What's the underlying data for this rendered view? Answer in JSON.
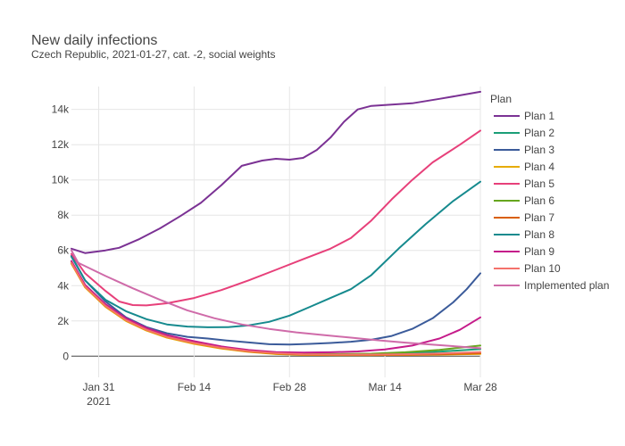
{
  "chart_data": {
    "type": "line",
    "title": "New daily infections",
    "subtitle": "Czech Republic, 2021-01-27, cat. -2, social weights",
    "xlabel": "",
    "ylabel": "",
    "x_tick_labels": [
      "Jan 31\n2021",
      "Feb 14",
      "Feb 28",
      "Mar 14",
      "Mar 28"
    ],
    "x_tick_dates": [
      "2021-01-31",
      "2021-02-14",
      "2021-02-28",
      "2021-03-14",
      "2021-03-28"
    ],
    "x_range": [
      "2021-01-27",
      "2021-03-28"
    ],
    "y_tick_labels": [
      "0",
      "2k",
      "4k",
      "6k",
      "8k",
      "10k",
      "12k",
      "14k"
    ],
    "y_tick_values": [
      0,
      2000,
      4000,
      6000,
      8000,
      10000,
      12000,
      14000
    ],
    "ylim": [
      -1200,
      15300
    ],
    "grid": true,
    "legend_title": "Plan",
    "legend_position": "right",
    "series": [
      {
        "name": "Plan 1",
        "color": "#7b3294",
        "x": [
          "2021-01-27",
          "2021-01-29",
          "2021-02-01",
          "2021-02-03",
          "2021-02-06",
          "2021-02-09",
          "2021-02-12",
          "2021-02-15",
          "2021-02-18",
          "2021-02-21",
          "2021-02-24",
          "2021-02-26",
          "2021-02-28",
          "2021-03-02",
          "2021-03-04",
          "2021-03-06",
          "2021-03-08",
          "2021-03-10",
          "2021-03-12",
          "2021-03-14",
          "2021-03-18",
          "2021-03-22",
          "2021-03-25",
          "2021-03-28"
        ],
        "y": [
          6100,
          5850,
          6000,
          6150,
          6650,
          7250,
          7950,
          8700,
          9700,
          10800,
          11100,
          11200,
          11150,
          11250,
          11700,
          12400,
          13300,
          14000,
          14200,
          14250,
          14350,
          14600,
          14800,
          15000
        ]
      },
      {
        "name": "Plan 2",
        "color": "#1b9e77",
        "x": [
          "2021-01-27",
          "2021-01-29",
          "2021-02-01",
          "2021-02-04",
          "2021-02-07",
          "2021-02-10",
          "2021-02-14",
          "2021-02-18",
          "2021-02-22",
          "2021-02-26",
          "2021-03-02",
          "2021-03-07",
          "2021-03-12",
          "2021-03-17",
          "2021-03-22",
          "2021-03-28"
        ],
        "y": [
          5300,
          4000,
          2900,
          2100,
          1550,
          1150,
          800,
          520,
          300,
          180,
          120,
          100,
          120,
          170,
          260,
          400
        ]
      },
      {
        "name": "Plan 3",
        "color": "#3b5b9a",
        "x": [
          "2021-01-27",
          "2021-01-29",
          "2021-02-01",
          "2021-02-04",
          "2021-02-07",
          "2021-02-10",
          "2021-02-13",
          "2021-02-16",
          "2021-02-19",
          "2021-02-22",
          "2021-02-25",
          "2021-02-28",
          "2021-03-03",
          "2021-03-06",
          "2021-03-09",
          "2021-03-12",
          "2021-03-15",
          "2021-03-18",
          "2021-03-21",
          "2021-03-24",
          "2021-03-26",
          "2021-03-28"
        ],
        "y": [
          5700,
          4300,
          3100,
          2200,
          1650,
          1300,
          1100,
          1000,
          880,
          780,
          680,
          660,
          700,
          750,
          820,
          930,
          1150,
          1550,
          2150,
          3050,
          3800,
          4700
        ]
      },
      {
        "name": "Plan 4",
        "color": "#e6ab02",
        "x": [
          "2021-01-27",
          "2021-01-29",
          "2021-02-01",
          "2021-02-04",
          "2021-02-07",
          "2021-02-10",
          "2021-02-14",
          "2021-02-18",
          "2021-02-22",
          "2021-02-26",
          "2021-03-02",
          "2021-03-07",
          "2021-03-12",
          "2021-03-17",
          "2021-03-22",
          "2021-03-28"
        ],
        "y": [
          5250,
          3900,
          2800,
          2000,
          1450,
          1050,
          700,
          430,
          240,
          120,
          70,
          60,
          60,
          70,
          90,
          130
        ]
      },
      {
        "name": "Plan 5",
        "color": "#e7407a",
        "x": [
          "2021-01-27",
          "2021-01-29",
          "2021-02-01",
          "2021-02-03",
          "2021-02-05",
          "2021-02-07",
          "2021-02-10",
          "2021-02-14",
          "2021-02-18",
          "2021-02-22",
          "2021-02-26",
          "2021-03-02",
          "2021-03-06",
          "2021-03-09",
          "2021-03-12",
          "2021-03-15",
          "2021-03-18",
          "2021-03-21",
          "2021-03-25",
          "2021-03-28"
        ],
        "y": [
          5800,
          4700,
          3700,
          3100,
          2900,
          2880,
          3000,
          3300,
          3750,
          4300,
          4900,
          5500,
          6100,
          6700,
          7700,
          8900,
          10000,
          11000,
          12000,
          12800
        ]
      },
      {
        "name": "Plan 6",
        "color": "#66a61e",
        "x": [
          "2021-01-27",
          "2021-01-29",
          "2021-02-01",
          "2021-02-04",
          "2021-02-07",
          "2021-02-10",
          "2021-02-14",
          "2021-02-18",
          "2021-02-22",
          "2021-02-26",
          "2021-03-02",
          "2021-03-07",
          "2021-03-12",
          "2021-03-17",
          "2021-03-22",
          "2021-03-28"
        ],
        "y": [
          5350,
          4000,
          2900,
          2100,
          1550,
          1150,
          800,
          520,
          310,
          190,
          140,
          120,
          140,
          220,
          360,
          600
        ]
      },
      {
        "name": "Plan 7",
        "color": "#d95f02",
        "x": [
          "2021-01-27",
          "2021-01-29",
          "2021-02-01",
          "2021-02-04",
          "2021-02-07",
          "2021-02-10",
          "2021-02-14",
          "2021-02-18",
          "2021-02-22",
          "2021-02-26",
          "2021-03-02",
          "2021-03-07",
          "2021-03-12",
          "2021-03-17",
          "2021-03-22",
          "2021-03-28"
        ],
        "y": [
          5300,
          3950,
          2850,
          2050,
          1500,
          1100,
          750,
          470,
          270,
          150,
          90,
          70,
          70,
          80,
          110,
          160
        ]
      },
      {
        "name": "Plan 8",
        "color": "#168a8e",
        "x": [
          "2021-01-27",
          "2021-01-29",
          "2021-02-01",
          "2021-02-04",
          "2021-02-07",
          "2021-02-10",
          "2021-02-13",
          "2021-02-16",
          "2021-02-19",
          "2021-02-22",
          "2021-02-25",
          "2021-02-28",
          "2021-03-03",
          "2021-03-06",
          "2021-03-09",
          "2021-03-12",
          "2021-03-16",
          "2021-03-20",
          "2021-03-24",
          "2021-03-28"
        ],
        "y": [
          5650,
          4300,
          3200,
          2550,
          2100,
          1800,
          1680,
          1640,
          1650,
          1750,
          1950,
          2300,
          2800,
          3300,
          3800,
          4600,
          6100,
          7500,
          8800,
          9900
        ]
      },
      {
        "name": "Plan 9",
        "color": "#c51b8a",
        "x": [
          "2021-01-27",
          "2021-01-29",
          "2021-02-01",
          "2021-02-04",
          "2021-02-07",
          "2021-02-10",
          "2021-02-14",
          "2021-02-18",
          "2021-02-22",
          "2021-02-26",
          "2021-03-02",
          "2021-03-06",
          "2021-03-10",
          "2021-03-14",
          "2021-03-18",
          "2021-03-22",
          "2021-03-25",
          "2021-03-28"
        ],
        "y": [
          5400,
          4050,
          2950,
          2150,
          1600,
          1200,
          850,
          550,
          350,
          230,
          200,
          220,
          270,
          380,
          600,
          1000,
          1500,
          2200
        ]
      },
      {
        "name": "Plan 10",
        "color": "#f4726b",
        "x": [
          "2021-01-27",
          "2021-01-29",
          "2021-02-01",
          "2021-02-04",
          "2021-02-07",
          "2021-02-10",
          "2021-02-14",
          "2021-02-18",
          "2021-02-22",
          "2021-02-26",
          "2021-03-02",
          "2021-03-07",
          "2021-03-12",
          "2021-03-17",
          "2021-03-22",
          "2021-03-28"
        ],
        "y": [
          5300,
          3950,
          2850,
          2050,
          1500,
          1100,
          750,
          480,
          290,
          170,
          110,
          90,
          90,
          110,
          150,
          230
        ]
      },
      {
        "name": "Implemented plan",
        "color": "#cf6ba9",
        "x": [
          "2021-01-27",
          "2021-01-28",
          "2021-02-01",
          "2021-02-05",
          "2021-02-09",
          "2021-02-13",
          "2021-02-17",
          "2021-02-21",
          "2021-02-25",
          "2021-03-01",
          "2021-03-05",
          "2021-03-09",
          "2021-03-13",
          "2021-03-17",
          "2021-03-21",
          "2021-03-25",
          "2021-03-28"
        ],
        "y": [
          6000,
          5300,
          4550,
          3850,
          3200,
          2600,
          2150,
          1800,
          1550,
          1350,
          1200,
          1050,
          900,
          770,
          650,
          540,
          450
        ]
      }
    ]
  }
}
